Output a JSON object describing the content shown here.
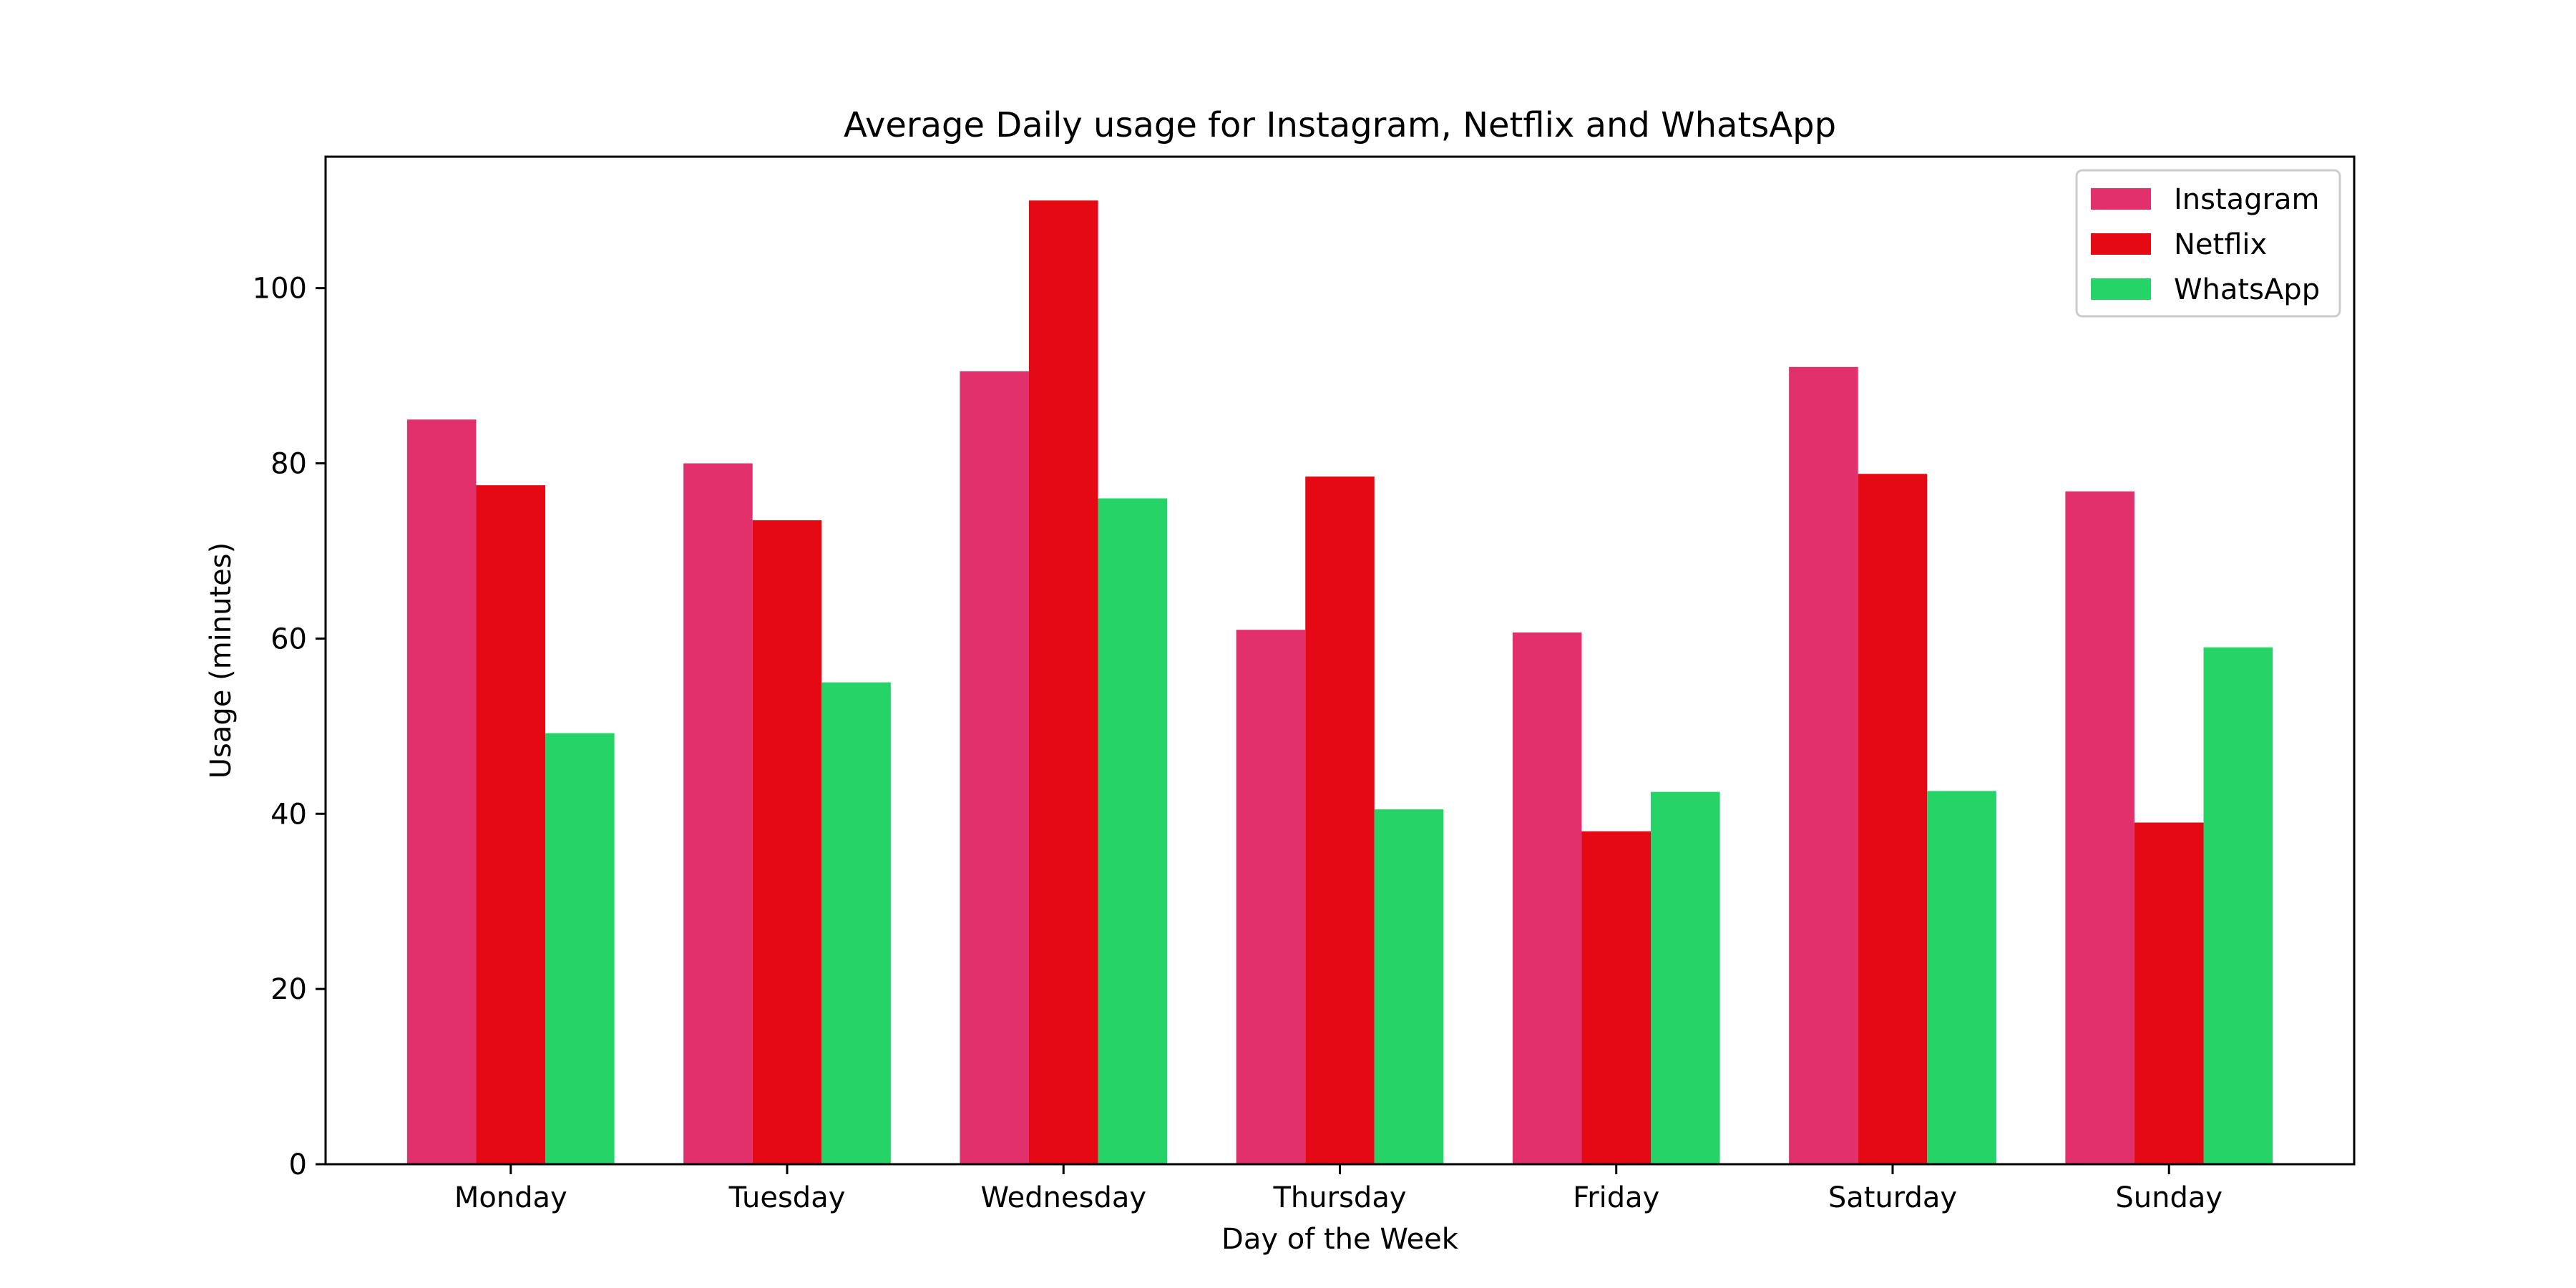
{
  "chart_data": {
    "type": "bar",
    "title": "Average Daily usage for Instagram, Netflix and WhatsApp",
    "xlabel": "Day of the Week",
    "ylabel": "Usage (minutes)",
    "categories": [
      "Monday",
      "Tuesday",
      "Wednesday",
      "Thursday",
      "Friday",
      "Saturday",
      "Sunday"
    ],
    "series": [
      {
        "name": "Instagram",
        "color": "#e1306c",
        "values": [
          85,
          80,
          90.5,
          61,
          60.7,
          91,
          76.8
        ]
      },
      {
        "name": "Netflix",
        "color": "#e50914",
        "values": [
          77.5,
          73.5,
          110,
          78.5,
          38,
          78.8,
          39
        ]
      },
      {
        "name": "WhatsApp",
        "color": "#25d366",
        "values": [
          49.2,
          55,
          76,
          40.5,
          42.5,
          42.6,
          59
        ]
      }
    ],
    "ylim": [
      0,
      115
    ],
    "yticks": [
      0,
      20,
      40,
      60,
      80,
      100
    ],
    "grid": false,
    "legend_position": "top-right"
  }
}
